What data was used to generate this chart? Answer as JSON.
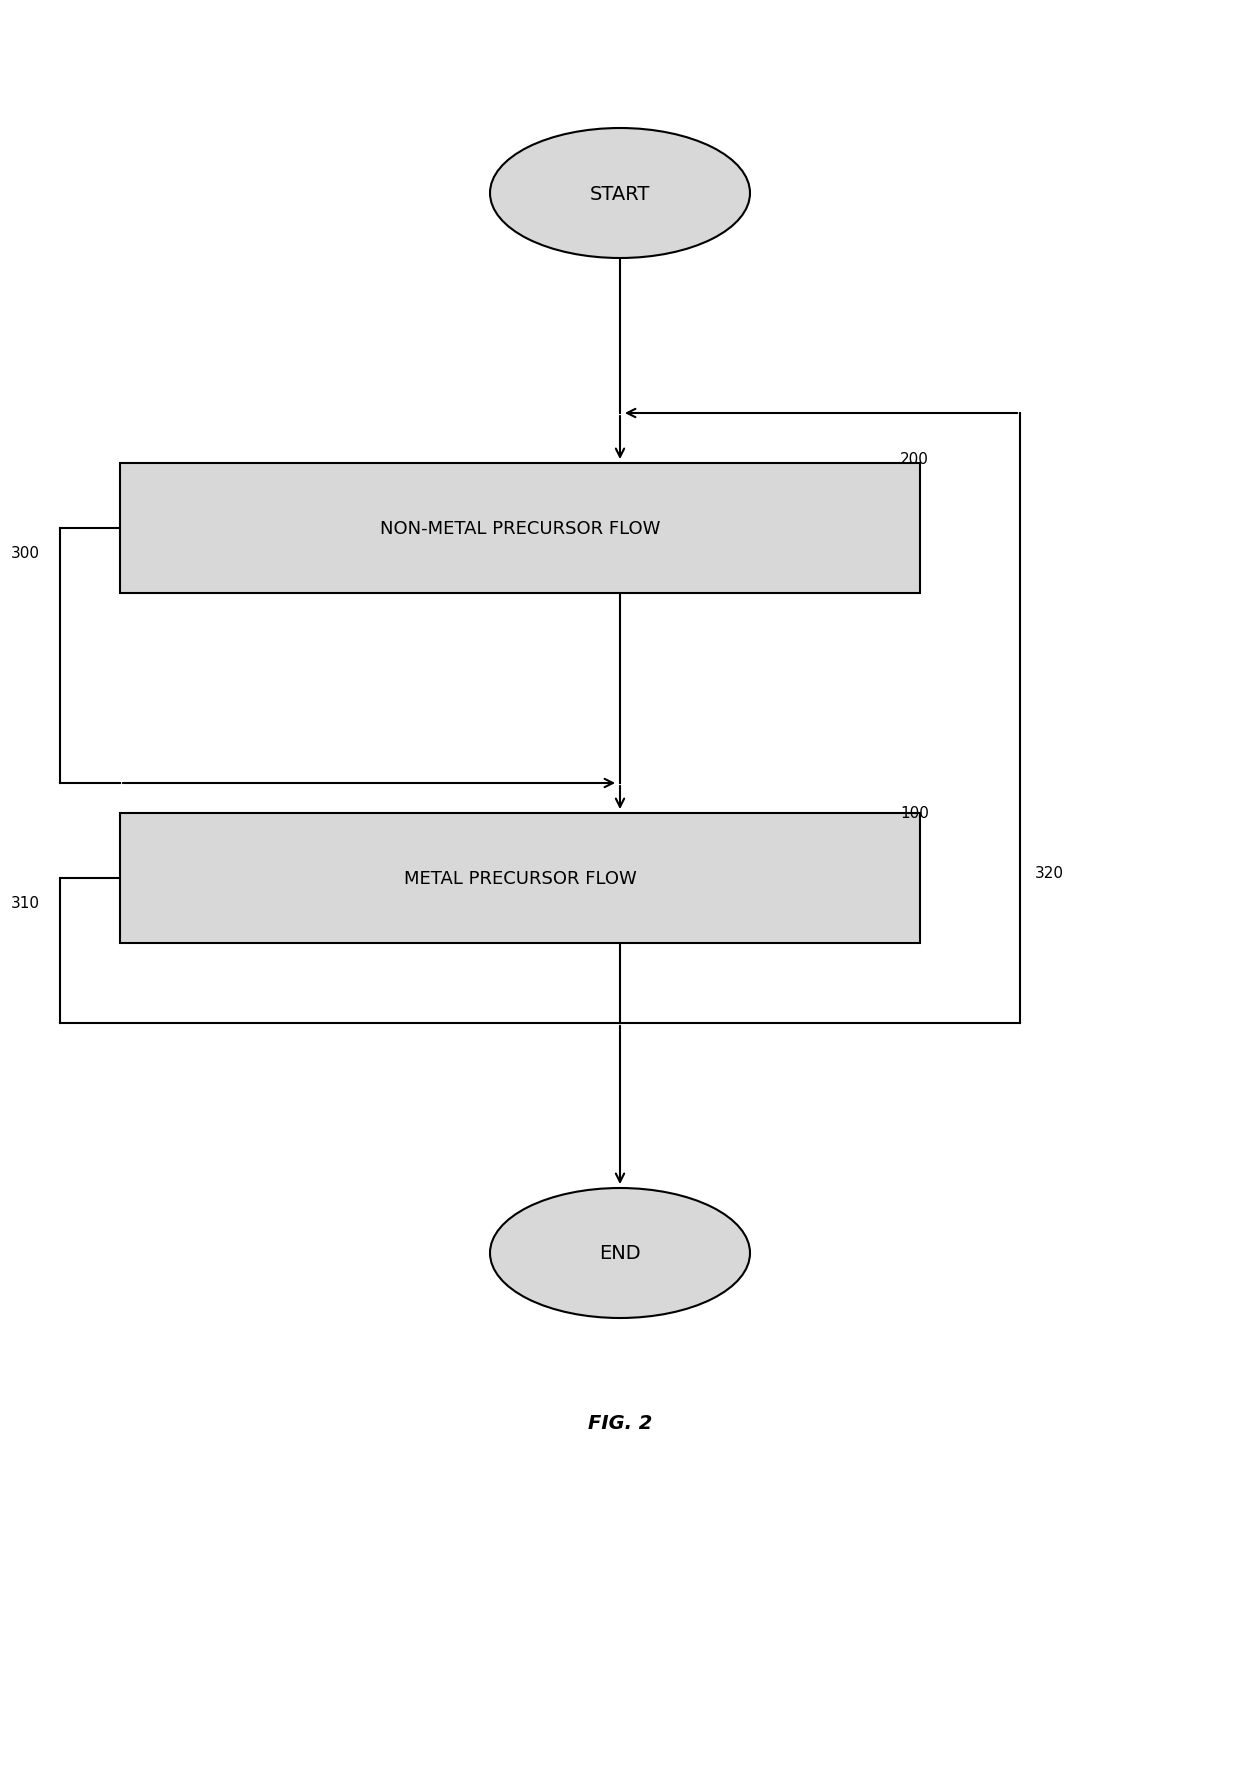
{
  "title": "FIG. 2",
  "background_color": "#ffffff",
  "start_label": "START",
  "end_label": "END",
  "box1_label": "NON-METAL PRECURSOR FLOW",
  "box2_label": "METAL PRECURSOR FLOW",
  "label_200": "200",
  "label_100": "100",
  "label_300": "300",
  "label_310": "310",
  "label_320": "320",
  "ellipse_color": "#d8d8d8",
  "ellipse_edge": "#000000",
  "box_fill": "#d8d8d8",
  "box_edge": "#000000",
  "line_color": "#000000",
  "text_color": "#000000",
  "font_size_box": 13,
  "font_size_terminal": 14,
  "font_size_label": 11,
  "font_size_title": 14
}
